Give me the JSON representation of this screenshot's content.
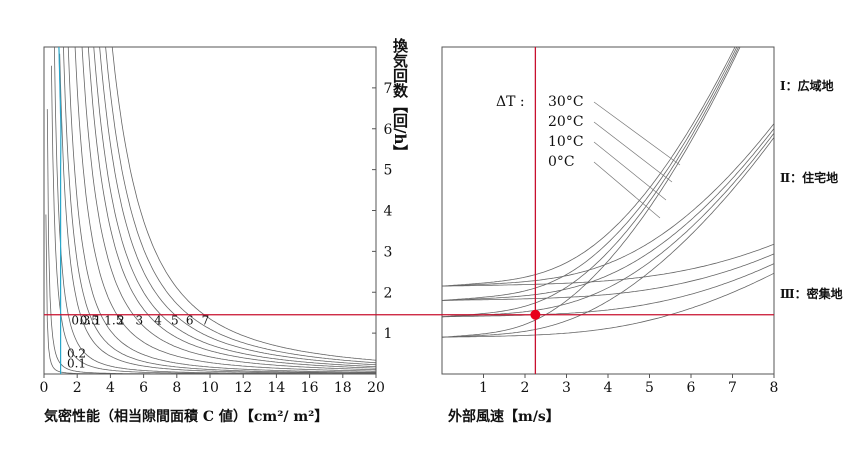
{
  "chart_data": [
    {
      "type": "line",
      "xlabel": "気密性能（相当隙間面積 C 値）【cm²/ m²】",
      "ylabel": "換気回数【回/h】",
      "xlim": [
        0,
        20
      ],
      "ylim": [
        0,
        8
      ],
      "xticks": [
        "0",
        "2",
        "4",
        "6",
        "8",
        "10",
        "12",
        "14",
        "16",
        "18",
        "20"
      ],
      "yticks": [
        "1",
        "2",
        "3",
        "4",
        "5",
        "6",
        "7"
      ],
      "curves": [
        {
          "label": "0.1",
          "k": 0.05
        },
        {
          "label": "0.2",
          "k": 0.25
        },
        {
          "label": "0.3",
          "k": 1.5
        },
        {
          "label": "0.5",
          "k": 3.1
        },
        {
          "label": "1",
          "k": 7
        },
        {
          "label": "1.5",
          "k": 11
        },
        {
          "label": "2",
          "k": 17
        },
        {
          "label": "3",
          "k": 28
        },
        {
          "label": "4",
          "k": 42
        },
        {
          "label": "5",
          "k": 57
        },
        {
          "label": "6",
          "k": 72
        },
        {
          "label": "7",
          "k": 90
        },
        {
          "label": "",
          "k": 110
        },
        {
          "label": "",
          "k": 135
        }
      ],
      "curve_exponent": 2,
      "marker_line": {
        "x": 1,
        "color": "#2aa6c9"
      },
      "reference_y": 1.45,
      "colors": {
        "curve": "#666666",
        "reference": "#c8102e"
      }
    },
    {
      "type": "line",
      "xlabel": "外部風速【m/s】",
      "xlim": [
        0,
        8
      ],
      "ylim": [
        0,
        8
      ],
      "xticks": [
        "1",
        "2",
        "3",
        "4",
        "5",
        "6",
        "7",
        "8"
      ],
      "dt_label": "ΔT :",
      "dt_values": [
        "30°C",
        "20°C",
        "10°C",
        "0°C"
      ],
      "groups": [
        {
          "label": "Ⅰ：広域地",
          "base": [
            2.15,
            1.8,
            1.4,
            0.9
          ],
          "coef": 0.12
        },
        {
          "label": "Ⅱ：住宅地",
          "base": [
            2.15,
            1.8,
            1.4,
            0.9
          ],
          "coef": 0.07
        },
        {
          "label": "Ⅲ：密集地",
          "base": [
            2.15,
            1.8,
            1.4,
            0.9
          ],
          "coef": 0.028
        }
      ],
      "reference_y": 1.45,
      "point": {
        "x": 2.25,
        "y": 1.45
      },
      "colors": {
        "curve": "#666666",
        "reference": "#c8102e",
        "point": "#e8001c"
      }
    }
  ]
}
